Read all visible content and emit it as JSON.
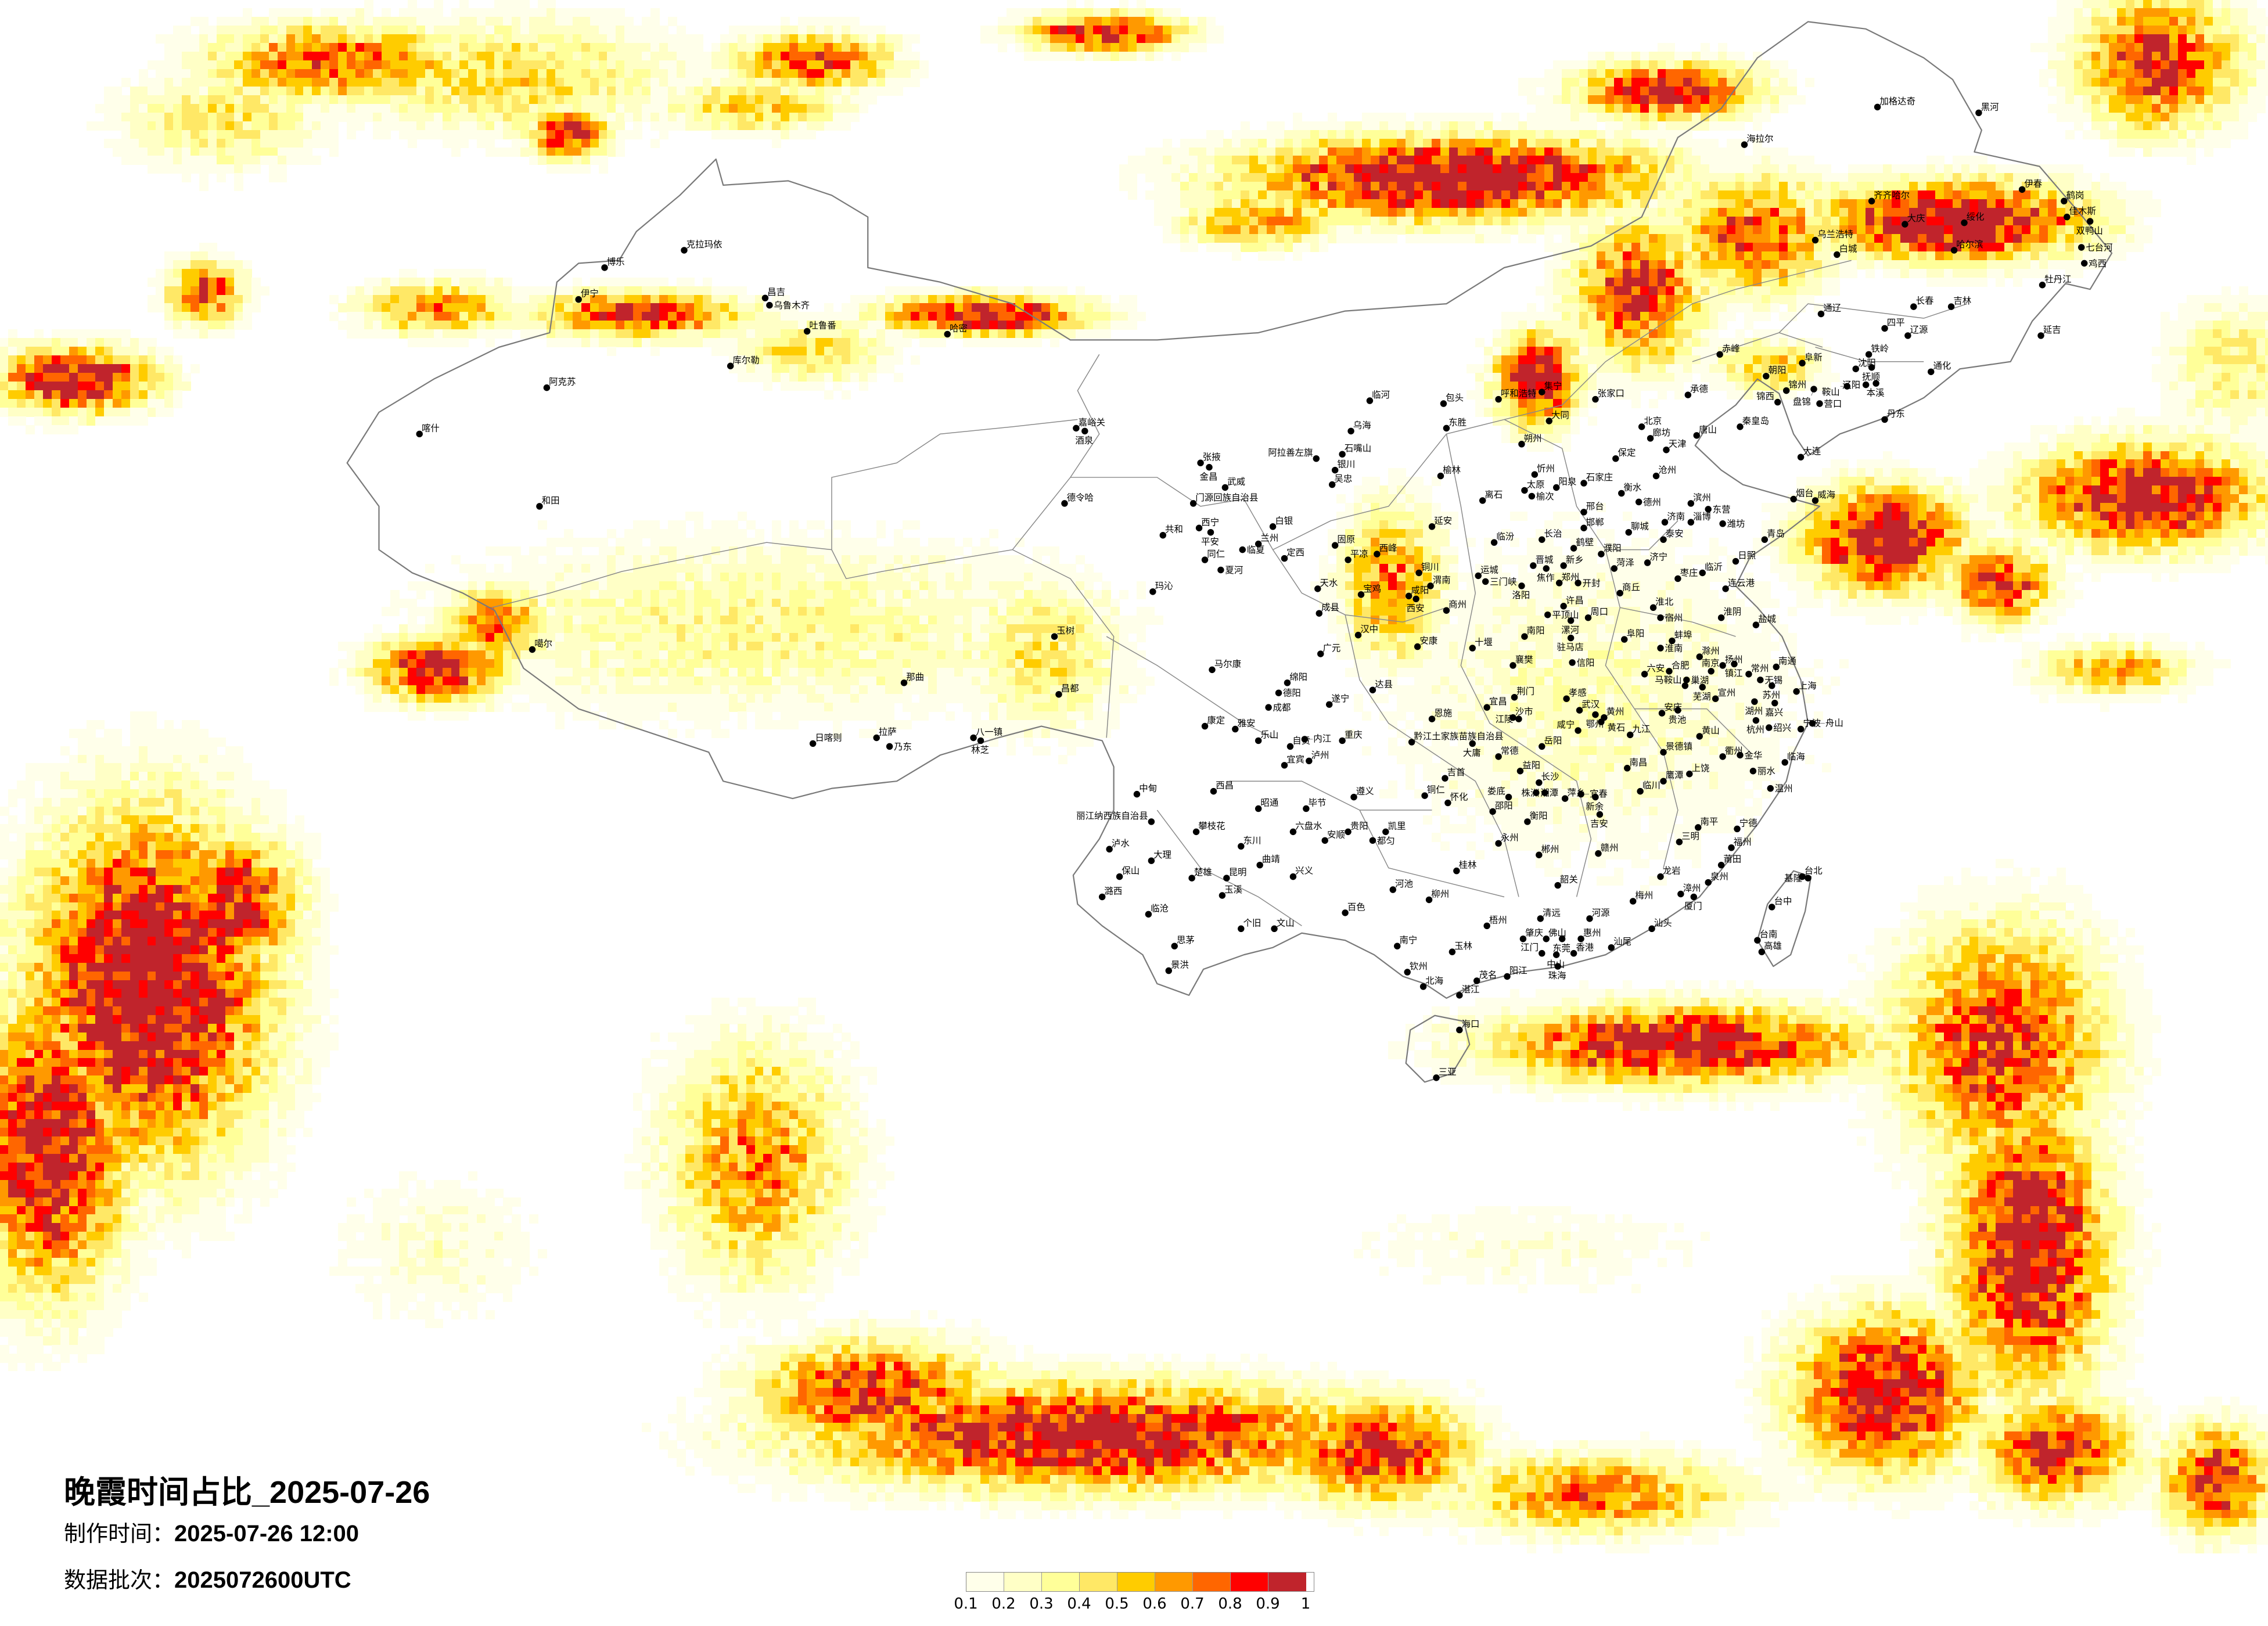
{
  "title": "晚霞时间占比_2025-07-26",
  "production_time_label": "制作时间：",
  "production_time": "2025-07-26 12:00",
  "data_batch_label": "数据批次：",
  "data_batch": "2025072600UTC",
  "legend": {
    "labels": [
      "0.1",
      "0.2",
      "0.3",
      "0.4",
      "0.5",
      "0.6",
      "0.7",
      "0.8",
      "0.9",
      "1"
    ],
    "colors": [
      "#FFFFEA",
      "#FFFFC6",
      "#FFFF99",
      "#FFE866",
      "#FFCC00",
      "#FF9900",
      "#FF6600",
      "#FF0000",
      "#C0242C"
    ]
  },
  "border_color": "#7A7A7A",
  "cities": [
    "克拉玛依",
    "博乐",
    "伊宁",
    "昌吉",
    "乌鲁木齐",
    "吐鲁番",
    "哈密",
    "库尔勒",
    "阿克苏",
    "喀什",
    "和田",
    "噶尔",
    "嘉峪关",
    "酒泉",
    "张掖",
    "德令哈",
    "共和",
    "玛沁",
    "玉树",
    "那曲",
    "昌都",
    "拉萨",
    "日喀则",
    "乃东",
    "八一镇",
    "林芝",
    "加格达奇",
    "黑河",
    "海拉尔",
    "齐齐哈尔",
    "伊春",
    "鹤岗",
    "佳木斯",
    "双鸭山",
    "大庆",
    "绥化",
    "乌兰浩特",
    "白城",
    "哈尔滨",
    "七台河",
    "鸡西",
    "牡丹江",
    "长春",
    "吉林",
    "通辽",
    "四平",
    "辽源",
    "延吉",
    "赤峰",
    "铁岭",
    "阜新",
    "沈阳",
    "抚顺",
    "朝阳",
    "通化",
    "辽阳",
    "鞍山",
    "本溪",
    "锦州",
    "盘锦",
    "锦西",
    "营口",
    "承德",
    "丹东",
    "秦皇岛",
    "唐山",
    "大连",
    "临河",
    "包头",
    "呼和浩特",
    "集宁",
    "张家口",
    "乌海",
    "东胜",
    "大同",
    "朔州",
    "北京",
    "廊坊",
    "天津",
    "石嘴山",
    "阿拉善左旗",
    "银川",
    "吴忠",
    "金昌",
    "武威",
    "门源回族自治县",
    "榆林",
    "保定",
    "沧州",
    "忻州",
    "离石",
    "太原",
    "榆次",
    "阳泉",
    "石家庄",
    "衡水",
    "德州",
    "滨州",
    "东营",
    "西宁",
    "平安",
    "白银",
    "兰州",
    "临夏",
    "同仁",
    "夏河",
    "定西",
    "固原",
    "平凉",
    "西峰",
    "延安",
    "临汾",
    "长治",
    "邢台",
    "邯郸",
    "鹤壁",
    "濮阳",
    "聊城",
    "济南",
    "淄博",
    "潍坊",
    "泰安",
    "烟台",
    "威海",
    "青岛",
    "日照",
    "济宁",
    "菏泽",
    "临沂",
    "枣庄",
    "连云港",
    "晋城",
    "焦作",
    "新乡",
    "运城",
    "三门峡",
    "洛阳",
    "郑州",
    "开封",
    "商丘",
    "天水",
    "宝鸡",
    "咸阳",
    "西安",
    "铜川",
    "渭南",
    "商州",
    "成县",
    "汉中",
    "安康",
    "十堰",
    "许昌",
    "平顶山",
    "漯河",
    "周口",
    "南阳",
    "驻马店",
    "阜阳",
    "淮北",
    "宿州",
    "淮阴",
    "盐城",
    "蚌埠",
    "淮南",
    "广元",
    "马尔康",
    "信阳",
    "襄樊",
    "滁州",
    "扬州",
    "镇江",
    "南通",
    "常州",
    "无锡",
    "六安",
    "合肥",
    "巢湖",
    "南京",
    "马鞍山",
    "芜湖",
    "苏州",
    "上海",
    "绵阳",
    "德阳",
    "达县",
    "成都",
    "遂宁",
    "荆门",
    "孝感",
    "宜昌",
    "沙市",
    "江陵",
    "武汉",
    "鄂州",
    "黄州",
    "黄石",
    "咸宁",
    "安庆",
    "贵池",
    "宣州",
    "湖州",
    "嘉兴",
    "杭州",
    "绍兴",
    "宁波",
    "舟山",
    "康定",
    "雅安",
    "恩施",
    "黔江土家族苗族自治县",
    "重庆",
    "乐山",
    "自贡",
    "内江",
    "宜宾",
    "泸州",
    "九江",
    "黄山",
    "景德镇",
    "岳阳",
    "大庸",
    "常德",
    "益阳",
    "长沙",
    "湘潭",
    "株洲",
    "萍乡",
    "宜春",
    "新余",
    "吉安",
    "南昌",
    "鹰潭",
    "上饶",
    "衢州",
    "金华",
    "丽水",
    "临海",
    "温州",
    "临川",
    "西昌",
    "吉首",
    "铜仁",
    "怀化",
    "娄底",
    "邵阳",
    "衡阳",
    "遵义",
    "毕节",
    "昭通",
    "攀枝花",
    "六盘水",
    "贵阳",
    "安顺",
    "凯里",
    "都匀",
    "东川",
    "永州",
    "郴州",
    "赣州",
    "三明",
    "南平",
    "宁德",
    "福州",
    "莆田",
    "泉州",
    "龙岩",
    "漳州",
    "厦门",
    "曲靖",
    "兴义",
    "桂林",
    "韶关",
    "楚雄",
    "昆明",
    "玉溪",
    "河池",
    "柳州",
    "台北",
    "基隆",
    "中甸",
    "丽江纳西族自治县",
    "泸水",
    "大理",
    "保山",
    "潞西",
    "临沧",
    "个旧",
    "文山",
    "思茅",
    "景洪",
    "百色",
    "南宁",
    "玉林",
    "梧州",
    "清远",
    "河源",
    "梅州",
    "汕头",
    "汕尾",
    "肇庆",
    "佛山",
    "东莞",
    "惠州",
    "江门",
    "中山",
    "香港",
    "珠海",
    "阳江",
    "茂名",
    "湛江",
    "钦州",
    "北海",
    "海口",
    "三亚",
    "台中",
    "台南",
    "高雄"
  ]
}
